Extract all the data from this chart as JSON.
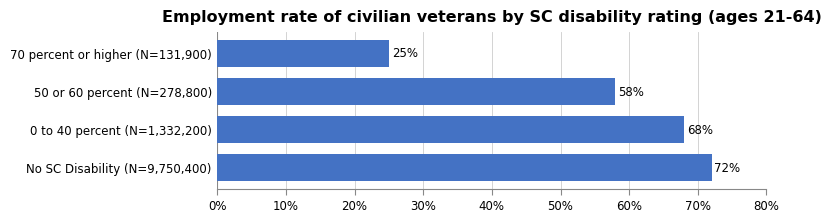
{
  "title": "Employment rate of civilian veterans by SC disability rating (ages 21-64)",
  "categories": [
    "No SC Disability (N=9,750,400)",
    "0 to 40 percent (N=1,332,200)",
    "50 or 60 percent (N=278,800)",
    "70 percent or higher (N=131,900)"
  ],
  "values": [
    0.72,
    0.68,
    0.58,
    0.25
  ],
  "bar_labels": [
    "72%",
    "68%",
    "58%",
    "25%"
  ],
  "bar_color": "#4472C4",
  "xlim": [
    0,
    0.8
  ],
  "xticks": [
    0.0,
    0.1,
    0.2,
    0.3,
    0.4,
    0.5,
    0.6,
    0.7,
    0.8
  ],
  "xtick_labels": [
    "0%",
    "10%",
    "20%",
    "30%",
    "40%",
    "50%",
    "60%",
    "70%",
    "80%"
  ],
  "title_fontsize": 11.5,
  "label_fontsize": 8.5,
  "tick_fontsize": 8.5,
  "bar_label_fontsize": 8.5,
  "background_color": "#ffffff",
  "bar_height": 0.72
}
